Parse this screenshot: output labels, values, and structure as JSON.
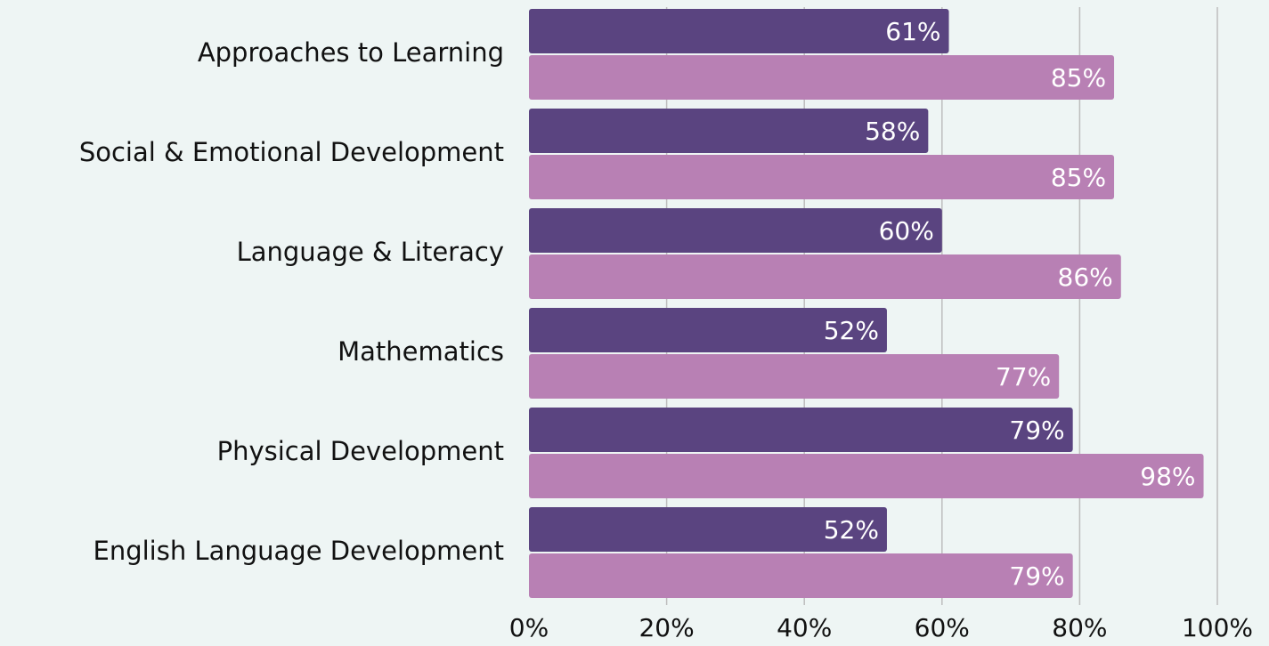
{
  "chart_data": {
    "type": "hbar",
    "categories": [
      "Approaches to Learning",
      "Social & Emotional Development",
      "Language & Literacy",
      "Mathematics",
      "Physical Development",
      "English Language Development"
    ],
    "series": [
      {
        "color": "#5a4480",
        "values": [
          61,
          58,
          60,
          52,
          79,
          52
        ],
        "value_labels": [
          "61%",
          "58%",
          "60%",
          "52%",
          "79%",
          "52%"
        ]
      },
      {
        "color": "#b880b4",
        "values": [
          85,
          85,
          86,
          77,
          98,
          79
        ],
        "value_labels": [
          "85%",
          "85%",
          "86%",
          "77%",
          "98%",
          "79%"
        ]
      }
    ],
    "xlim": [
      0,
      100
    ],
    "xticks": [
      {
        "value": 0,
        "label": "0%"
      },
      {
        "value": 20,
        "label": "20%"
      },
      {
        "value": 40,
        "label": "40%"
      },
      {
        "value": 60,
        "label": "60%"
      },
      {
        "value": 80,
        "label": "80%"
      },
      {
        "value": 100,
        "label": "100%"
      }
    ],
    "grid": true
  }
}
